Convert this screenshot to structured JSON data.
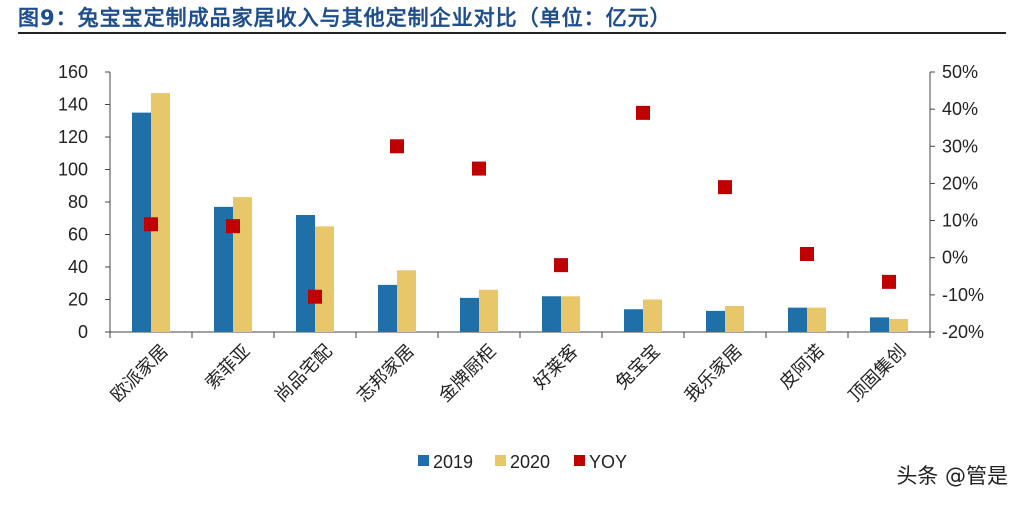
{
  "title": "图9：兔宝宝定制成品家居收入与其他定制企业对比（单位：亿元）",
  "watermark": "头条 @管是",
  "colors": {
    "s2019": "#1f6fa8",
    "s2020": "#e8c76a",
    "yoy": "#c00000"
  },
  "chart_data": {
    "type": "bar",
    "categories": [
      "欧派家居",
      "索菲亚",
      "尚品宅配",
      "志邦家居",
      "金牌厨柜",
      "好莱客",
      "兔宝宝",
      "我乐家居",
      "皮阿诺",
      "顶固集创"
    ],
    "series": [
      {
        "name": "2019",
        "type": "bar",
        "axis": "left",
        "values": [
          135,
          77,
          72,
          29,
          21,
          22,
          14,
          13,
          15,
          9
        ]
      },
      {
        "name": "2020",
        "type": "bar",
        "axis": "left",
        "values": [
          147,
          83,
          65,
          38,
          26,
          22,
          20,
          16,
          15,
          8
        ]
      },
      {
        "name": "YOY",
        "type": "scatter",
        "axis": "right",
        "values": [
          9,
          8.5,
          -10.5,
          30,
          24,
          -2,
          39,
          19,
          1,
          -6.5
        ]
      }
    ],
    "ylim": [
      0,
      160
    ],
    "yticks": [
      0,
      20,
      40,
      60,
      80,
      100,
      120,
      140,
      160
    ],
    "y2lim": [
      -20,
      50
    ],
    "y2ticks": [
      "-20%",
      "-10%",
      "0%",
      "10%",
      "20%",
      "30%",
      "40%",
      "50%"
    ],
    "legend_position": "bottom-center",
    "grid": false
  }
}
